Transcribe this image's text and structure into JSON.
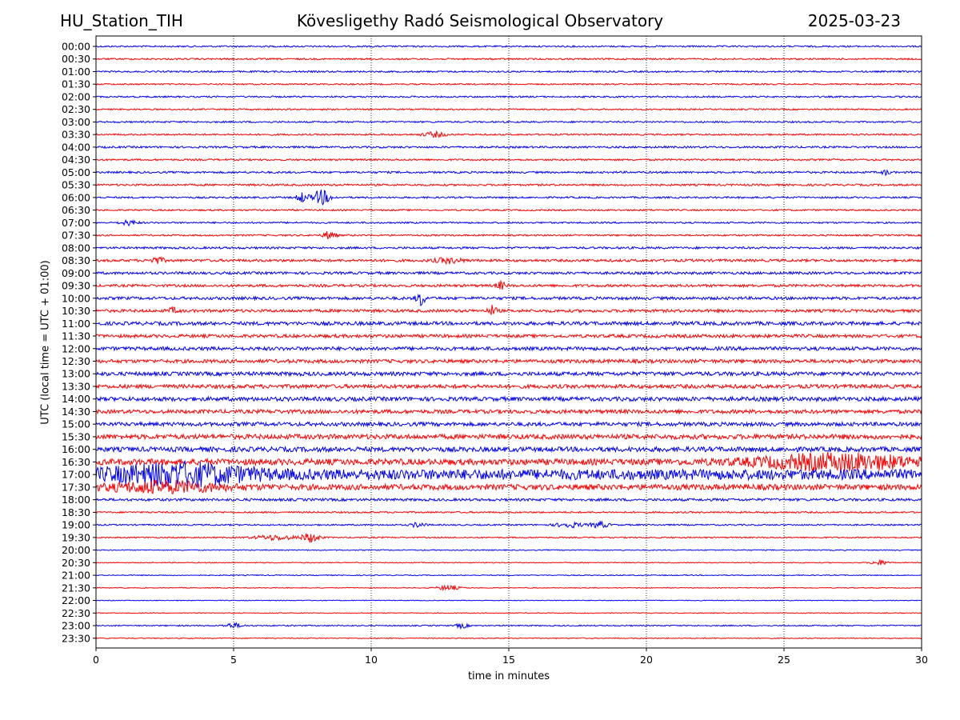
{
  "header": {
    "station": "HU_Station_TIH",
    "observatory": "Kövesligethy Radó Seismological Observatory",
    "date": "2025-03-23"
  },
  "chart_data": {
    "type": "line",
    "title": "Kövesligethy Radó Seismological Observatory",
    "xlabel": "time in minutes",
    "ylabel": "UTC (local time = UTC + 01:00)",
    "xlim": [
      0,
      30
    ],
    "x_ticks": [
      0,
      5,
      10,
      15,
      20,
      25,
      30
    ],
    "grid": "vertical dotted at each x tick",
    "colors": {
      "odd_hour_rows": "#0000ff",
      "half_hour_rows": "#ff0000",
      "grid": "#000000"
    },
    "rows": [
      {
        "label": "00:00",
        "color": "blue",
        "amplitude": 1.0,
        "events": []
      },
      {
        "label": "00:30",
        "color": "red",
        "amplitude": 1.0,
        "events": []
      },
      {
        "label": "01:00",
        "color": "blue",
        "amplitude": 1.0,
        "events": []
      },
      {
        "label": "01:30",
        "color": "red",
        "amplitude": 0.9,
        "events": []
      },
      {
        "label": "02:00",
        "color": "blue",
        "amplitude": 1.0,
        "events": []
      },
      {
        "label": "02:30",
        "color": "red",
        "amplitude": 0.9,
        "events": []
      },
      {
        "label": "03:00",
        "color": "blue",
        "amplitude": 1.0,
        "events": []
      },
      {
        "label": "03:30",
        "color": "red",
        "amplitude": 1.0,
        "events": [
          {
            "t": 12.3,
            "amp": 3,
            "dur": 0.8
          }
        ]
      },
      {
        "label": "04:00",
        "color": "blue",
        "amplitude": 1.2,
        "events": []
      },
      {
        "label": "04:30",
        "color": "red",
        "amplitude": 1.1,
        "events": []
      },
      {
        "label": "05:00",
        "color": "blue",
        "amplitude": 1.2,
        "events": [
          {
            "t": 28.7,
            "amp": 3,
            "dur": 0.3
          }
        ]
      },
      {
        "label": "05:30",
        "color": "red",
        "amplitude": 1.2,
        "events": []
      },
      {
        "label": "06:00",
        "color": "blue",
        "amplitude": 1.1,
        "events": [
          {
            "t": 7.5,
            "amp": 6,
            "dur": 0.4
          },
          {
            "t": 8.2,
            "amp": 9,
            "dur": 0.6
          }
        ]
      },
      {
        "label": "06:30",
        "color": "red",
        "amplitude": 1.0,
        "events": []
      },
      {
        "label": "07:00",
        "color": "blue",
        "amplitude": 1.0,
        "events": [
          {
            "t": 1.2,
            "amp": 3,
            "dur": 0.6
          }
        ]
      },
      {
        "label": "07:30",
        "color": "red",
        "amplitude": 1.0,
        "events": [
          {
            "t": 8.5,
            "amp": 6,
            "dur": 0.4
          }
        ]
      },
      {
        "label": "08:00",
        "color": "blue",
        "amplitude": 1.3,
        "events": []
      },
      {
        "label": "08:30",
        "color": "red",
        "amplitude": 1.6,
        "events": [
          {
            "t": 2.2,
            "amp": 4,
            "dur": 0.5
          },
          {
            "t": 12.8,
            "amp": 3,
            "dur": 1.0
          }
        ]
      },
      {
        "label": "09:00",
        "color": "blue",
        "amplitude": 1.6,
        "events": []
      },
      {
        "label": "09:30",
        "color": "red",
        "amplitude": 1.6,
        "events": [
          {
            "t": 14.7,
            "amp": 5,
            "dur": 0.3
          }
        ]
      },
      {
        "label": "10:00",
        "color": "blue",
        "amplitude": 1.8,
        "events": [
          {
            "t": 11.8,
            "amp": 9,
            "dur": 0.3
          }
        ]
      },
      {
        "label": "10:30",
        "color": "red",
        "amplitude": 1.8,
        "events": [
          {
            "t": 14.4,
            "amp": 6,
            "dur": 0.3
          },
          {
            "t": 2.8,
            "amp": 3,
            "dur": 0.4
          }
        ]
      },
      {
        "label": "11:00",
        "color": "blue",
        "amplitude": 2.2,
        "events": []
      },
      {
        "label": "11:30",
        "color": "red",
        "amplitude": 2.0,
        "events": []
      },
      {
        "label": "12:00",
        "color": "blue",
        "amplitude": 2.2,
        "events": []
      },
      {
        "label": "12:30",
        "color": "red",
        "amplitude": 2.2,
        "events": []
      },
      {
        "label": "13:00",
        "color": "blue",
        "amplitude": 2.4,
        "events": []
      },
      {
        "label": "13:30",
        "color": "red",
        "amplitude": 2.4,
        "events": []
      },
      {
        "label": "14:00",
        "color": "blue",
        "amplitude": 2.6,
        "events": []
      },
      {
        "label": "14:30",
        "color": "red",
        "amplitude": 2.4,
        "events": []
      },
      {
        "label": "15:00",
        "color": "blue",
        "amplitude": 2.4,
        "events": []
      },
      {
        "label": "15:30",
        "color": "red",
        "amplitude": 3.0,
        "events": []
      },
      {
        "label": "16:00",
        "color": "blue",
        "amplitude": 3.0,
        "events": []
      },
      {
        "label": "16:30",
        "color": "red",
        "amplitude": 3.8,
        "events": [
          {
            "t": 27.0,
            "amp": 9,
            "dur": 6.0
          }
        ]
      },
      {
        "label": "17:00",
        "color": "blue",
        "amplitude": 6.5,
        "events": [
          {
            "t": 3.0,
            "amp": 11,
            "dur": 5.0
          }
        ]
      },
      {
        "label": "17:30",
        "color": "red",
        "amplitude": 3.5,
        "events": [
          {
            "t": 2.5,
            "amp": 6,
            "dur": 4.0
          }
        ]
      },
      {
        "label": "18:00",
        "color": "blue",
        "amplitude": 1.6,
        "events": []
      },
      {
        "label": "18:30",
        "color": "red",
        "amplitude": 1.0,
        "events": []
      },
      {
        "label": "19:00",
        "color": "blue",
        "amplitude": 0.9,
        "events": [
          {
            "t": 11.7,
            "amp": 3,
            "dur": 0.5
          },
          {
            "t": 17.2,
            "amp": 3,
            "dur": 1.0
          },
          {
            "t": 18.3,
            "amp": 4,
            "dur": 0.6
          }
        ]
      },
      {
        "label": "19:30",
        "color": "red",
        "amplitude": 0.8,
        "events": [
          {
            "t": 6.5,
            "amp": 3,
            "dur": 1.5
          },
          {
            "t": 7.8,
            "amp": 6,
            "dur": 0.6
          }
        ]
      },
      {
        "label": "20:00",
        "color": "blue",
        "amplitude": 0.6,
        "events": []
      },
      {
        "label": "20:30",
        "color": "red",
        "amplitude": 0.6,
        "events": [
          {
            "t": 28.5,
            "amp": 3,
            "dur": 0.6
          }
        ]
      },
      {
        "label": "21:00",
        "color": "blue",
        "amplitude": 0.6,
        "events": []
      },
      {
        "label": "21:30",
        "color": "red",
        "amplitude": 0.5,
        "events": [
          {
            "t": 12.8,
            "amp": 3,
            "dur": 0.8
          }
        ]
      },
      {
        "label": "22:00",
        "color": "blue",
        "amplitude": 0.5,
        "events": []
      },
      {
        "label": "22:30",
        "color": "red",
        "amplitude": 0.5,
        "events": []
      },
      {
        "label": "23:00",
        "color": "blue",
        "amplitude": 0.8,
        "events": [
          {
            "t": 5.0,
            "amp": 3,
            "dur": 0.6
          },
          {
            "t": 13.3,
            "amp": 3,
            "dur": 0.4
          }
        ]
      },
      {
        "label": "23:30",
        "color": "red",
        "amplitude": 0.6,
        "events": []
      }
    ]
  }
}
